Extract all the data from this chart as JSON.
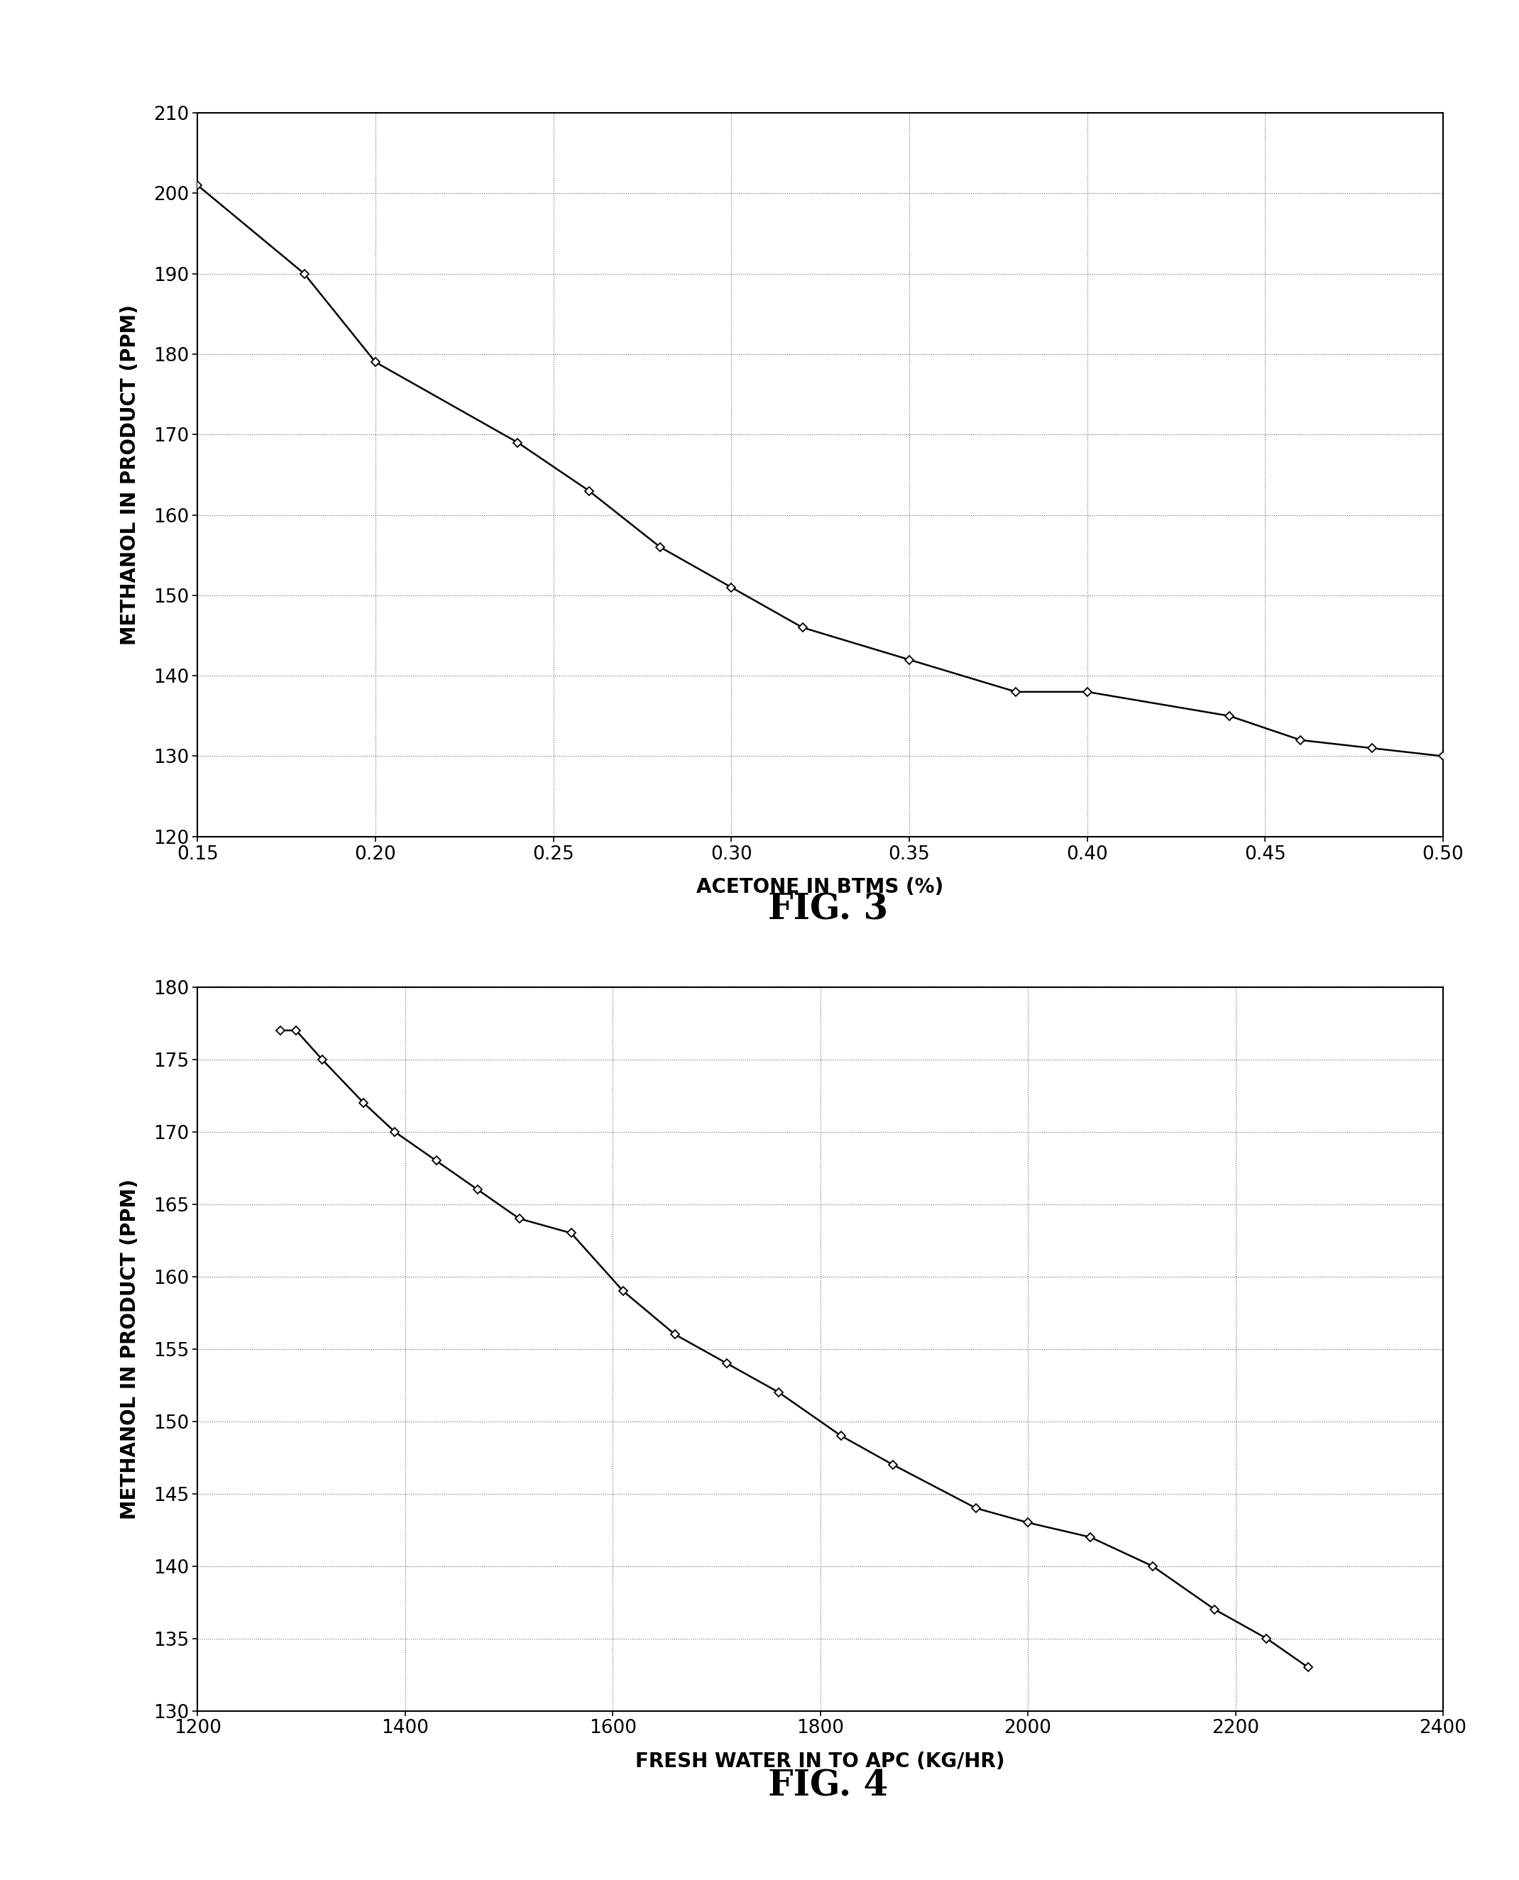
{
  "fig3": {
    "x": [
      0.15,
      0.18,
      0.2,
      0.24,
      0.26,
      0.28,
      0.3,
      0.32,
      0.35,
      0.38,
      0.4,
      0.44,
      0.46,
      0.48,
      0.5
    ],
    "y": [
      201,
      190,
      179,
      169,
      163,
      156,
      151,
      146,
      142,
      138,
      138,
      135,
      132,
      131,
      130
    ],
    "xlabel": "ACETONE IN BTMS (%)",
    "ylabel": "METHANOL IN PRODUCT (PPM)",
    "xlim": [
      0.15,
      0.5
    ],
    "ylim": [
      120,
      210
    ],
    "xticks": [
      0.15,
      0.2,
      0.25,
      0.3,
      0.35,
      0.4,
      0.45,
      0.5
    ],
    "yticks": [
      120,
      130,
      140,
      150,
      160,
      170,
      180,
      190,
      200,
      210
    ]
  },
  "fig4": {
    "x": [
      1280,
      1295,
      1320,
      1360,
      1390,
      1430,
      1470,
      1510,
      1560,
      1610,
      1660,
      1710,
      1760,
      1820,
      1870,
      1950,
      2000,
      2060,
      2120,
      2180,
      2230,
      2270
    ],
    "y": [
      177,
      177,
      175,
      172,
      170,
      168,
      166,
      164,
      163,
      159,
      156,
      154,
      152,
      149,
      147,
      144,
      143,
      142,
      140,
      137,
      135,
      133
    ],
    "xlabel": "FRESH WATER IN TO APC (KG/HR)",
    "ylabel": "METHANOL IN PRODUCT (PPM)",
    "xlim": [
      1200,
      2400
    ],
    "ylim": [
      130,
      180
    ],
    "xticks": [
      1200,
      1400,
      1600,
      1800,
      2000,
      2200,
      2400
    ],
    "yticks": [
      130,
      135,
      140,
      145,
      150,
      155,
      160,
      165,
      170,
      175,
      180
    ]
  },
  "fig3_title": "FIG. 3",
  "fig4_title": "FIG. 4",
  "line_color": "#000000",
  "marker": "D",
  "marker_size": 6,
  "marker_face": "#ffffff",
  "line_width": 1.8,
  "title_fontsize": 36,
  "label_fontsize": 20,
  "tick_fontsize": 19,
  "background_color": "#ffffff",
  "grid_linestyle": ":",
  "grid_linewidth": 0.8,
  "grid_color": "#555555"
}
